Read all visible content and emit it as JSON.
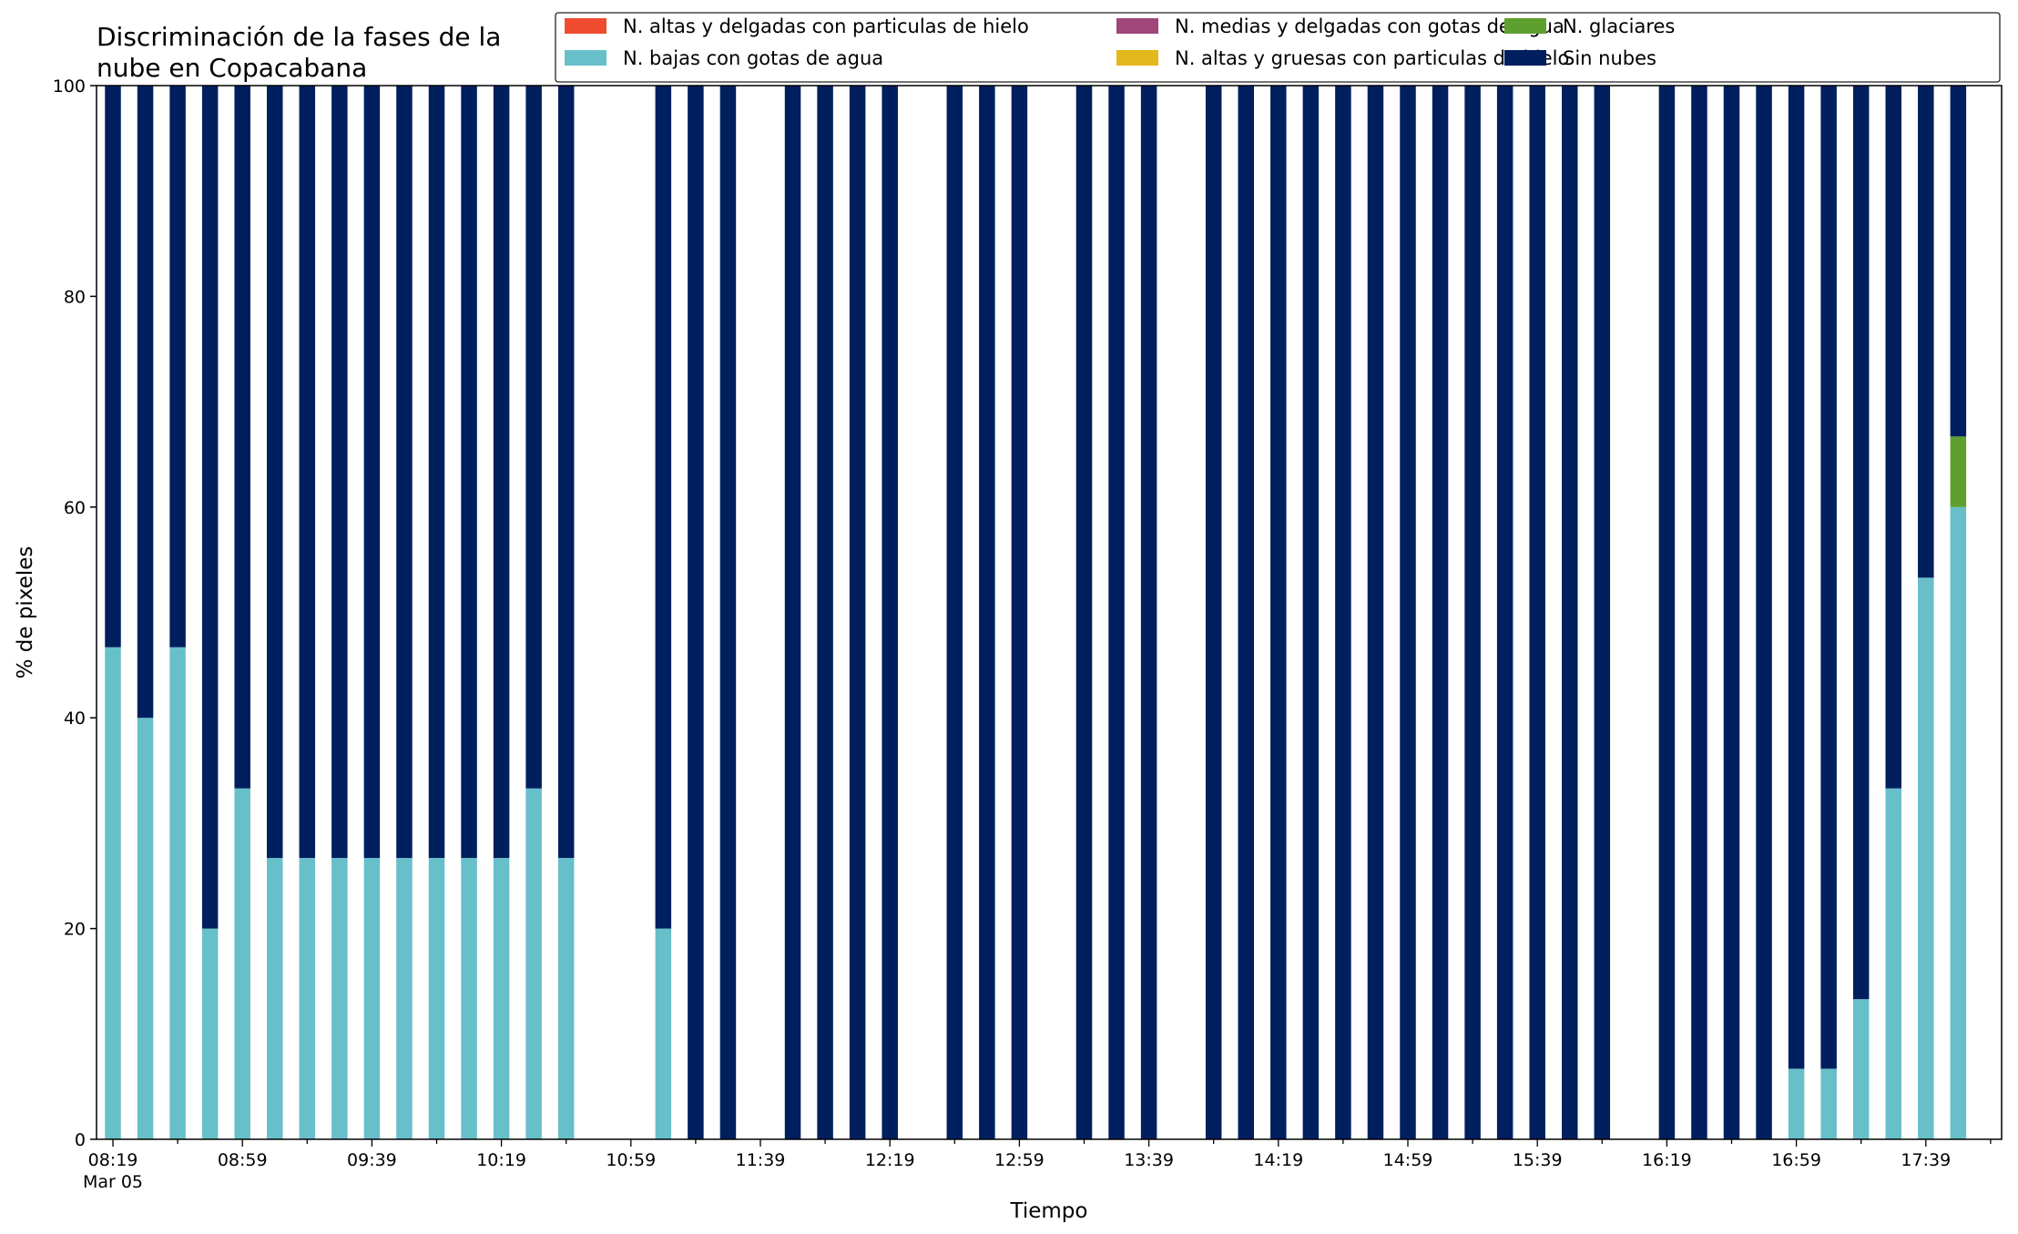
{
  "chart_data": {
    "type": "bar",
    "stacked": true,
    "title_lines": [
      "Discriminación de la fases de la",
      "nube en Copacabana"
    ],
    "xlabel": "Tiempo",
    "ylabel": "% de pixeles",
    "ylim": [
      0,
      100
    ],
    "yticks": [
      "0",
      "20",
      "40",
      "60",
      "80",
      "100"
    ],
    "xtick_labels": [
      "08:19",
      "08:59",
      "09:39",
      "10:19",
      "10:59",
      "11:39",
      "12:19",
      "12:59",
      "13:39",
      "14:19",
      "14:59",
      "15:39",
      "16:19",
      "16:59",
      "17:39"
    ],
    "xtick_sublabel": "Mar 05",
    "grid": false,
    "legend_position": "top",
    "x": [
      "08:19",
      "08:29",
      "08:39",
      "08:49",
      "08:59",
      "09:09",
      "09:19",
      "09:29",
      "09:39",
      "09:49",
      "09:59",
      "10:09",
      "10:19",
      "10:29",
      "10:39",
      "10:49",
      "10:59",
      "11:09",
      "11:19",
      "11:29",
      "11:39",
      "11:49",
      "11:59",
      "12:09",
      "12:19",
      "12:29",
      "12:39",
      "12:49",
      "12:59",
      "13:09",
      "13:19",
      "13:29",
      "13:39",
      "13:49",
      "13:59",
      "14:09",
      "14:19",
      "14:29",
      "14:39",
      "14:49",
      "14:59",
      "15:09",
      "15:19",
      "15:29",
      "15:39",
      "15:49",
      "15:59",
      "16:09",
      "16:19",
      "16:29",
      "16:39",
      "16:49",
      "16:59",
      "17:09",
      "17:19",
      "17:29",
      "17:39",
      "17:49"
    ],
    "series": [
      {
        "name": "N. altas y delgadas con particulas de hielo",
        "color": "#ef4b2f",
        "values": [
          0,
          0,
          0,
          0,
          0,
          0,
          0,
          0,
          0,
          0,
          0,
          0,
          0,
          0,
          0,
          null,
          null,
          0,
          0,
          0,
          null,
          0,
          0,
          0,
          0,
          null,
          0,
          0,
          0,
          null,
          0,
          0,
          0,
          null,
          0,
          0,
          0,
          0,
          0,
          0,
          0,
          0,
          0,
          0,
          0,
          0,
          0,
          null,
          0,
          0,
          0,
          0,
          0,
          0,
          0,
          0,
          0,
          0
        ]
      },
      {
        "name": "N. altas y gruesas con particulas de hielo",
        "color": "#e3b81c",
        "values": [
          0,
          0,
          0,
          0,
          0,
          0,
          0,
          0,
          0,
          0,
          0,
          0,
          0,
          0,
          0,
          null,
          null,
          0,
          0,
          0,
          null,
          0,
          0,
          0,
          0,
          null,
          0,
          0,
          0,
          null,
          0,
          0,
          0,
          null,
          0,
          0,
          0,
          0,
          0,
          0,
          0,
          0,
          0,
          0,
          0,
          0,
          0,
          null,
          0,
          0,
          0,
          0,
          0,
          0,
          0,
          0,
          0,
          0
        ]
      },
      {
        "name": "N. bajas con gotas de agua",
        "color": "#67bfca",
        "values": [
          46.7,
          40,
          46.7,
          20,
          33.3,
          26.7,
          26.7,
          26.7,
          26.7,
          26.7,
          26.7,
          26.7,
          26.7,
          33.3,
          26.7,
          null,
          null,
          20,
          0,
          0,
          null,
          0,
          0,
          0,
          0,
          null,
          0,
          0,
          0,
          null,
          0,
          0,
          0,
          null,
          0,
          0,
          0,
          0,
          0,
          0,
          0,
          0,
          0,
          0,
          0,
          0,
          0,
          null,
          0,
          0,
          0,
          0,
          6.7,
          6.7,
          13.3,
          33.3,
          53.3,
          60
        ]
      },
      {
        "name": "N. glaciares",
        "color": "#5ea02f",
        "values": [
          0,
          0,
          0,
          0,
          0,
          0,
          0,
          0,
          0,
          0,
          0,
          0,
          0,
          0,
          0,
          null,
          null,
          0,
          0,
          0,
          null,
          0,
          0,
          0,
          0,
          null,
          0,
          0,
          0,
          null,
          0,
          0,
          0,
          null,
          0,
          0,
          0,
          0,
          0,
          0,
          0,
          0,
          0,
          0,
          0,
          0,
          0,
          null,
          0,
          0,
          0,
          0,
          0,
          0,
          0,
          0,
          0,
          6.7
        ]
      },
      {
        "name": "N. medias y delgadas con gotas de agua",
        "color": "#a0467a",
        "values": [
          0,
          0,
          0,
          0,
          0,
          0,
          0,
          0,
          0,
          0,
          0,
          0,
          0,
          0,
          0,
          null,
          null,
          0,
          0,
          0,
          null,
          0,
          0,
          0,
          0,
          null,
          0,
          0,
          0,
          null,
          0,
          0,
          0,
          null,
          0,
          0,
          0,
          0,
          0,
          0,
          0,
          0,
          0,
          0,
          0,
          0,
          0,
          null,
          0,
          0,
          0,
          0,
          0,
          0,
          0,
          0,
          0,
          0
        ]
      },
      {
        "name": "Sin nubes",
        "color": "#001f5e",
        "values": [
          53.3,
          60,
          53.3,
          80,
          66.7,
          73.3,
          73.3,
          73.3,
          73.3,
          73.3,
          73.3,
          73.3,
          73.3,
          66.7,
          73.3,
          null,
          null,
          80,
          100,
          100,
          null,
          100,
          100,
          100,
          100,
          null,
          100,
          100,
          100,
          null,
          100,
          100,
          100,
          null,
          100,
          100,
          100,
          100,
          100,
          100,
          100,
          100,
          100,
          100,
          100,
          100,
          100,
          null,
          100,
          100,
          100,
          100,
          93.3,
          93.3,
          86.7,
          66.7,
          46.7,
          33.3
        ]
      }
    ],
    "legend_order": [
      0,
      2,
      4,
      1,
      3,
      5
    ]
  }
}
